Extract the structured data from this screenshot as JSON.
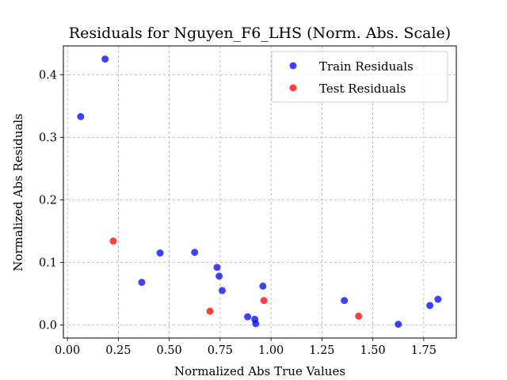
{
  "chart_data": {
    "type": "scatter",
    "title": "Residuals for Nguyen_F6_LHS (Norm. Abs. Scale)",
    "xlabel": "Normalized Abs True Values",
    "ylabel": "Normalized Abs Residuals",
    "xlim": [
      -0.02,
      1.91
    ],
    "ylim": [
      -0.021,
      0.446
    ],
    "xticks": [
      0.0,
      0.25,
      0.5,
      0.75,
      1.0,
      1.25,
      1.5,
      1.75
    ],
    "xtick_labels": [
      "0.00",
      "0.25",
      "0.50",
      "0.75",
      "1.00",
      "1.25",
      "1.50",
      "1.75"
    ],
    "yticks": [
      0.0,
      0.1,
      0.2,
      0.3,
      0.4
    ],
    "ytick_labels": [
      "0.0",
      "0.1",
      "0.2",
      "0.3",
      "0.4"
    ],
    "grid": true,
    "legend_position": "top-right",
    "series": [
      {
        "name": "Train Residuals",
        "color": "#0000ff",
        "points": [
          [
            0.065,
            0.333
          ],
          [
            0.185,
            0.425
          ],
          [
            0.365,
            0.068
          ],
          [
            0.455,
            0.115
          ],
          [
            0.625,
            0.116
          ],
          [
            0.735,
            0.092
          ],
          [
            0.745,
            0.078
          ],
          [
            0.76,
            0.055
          ],
          [
            0.885,
            0.013
          ],
          [
            0.92,
            0.009
          ],
          [
            0.925,
            0.002
          ],
          [
            0.96,
            0.062
          ],
          [
            1.36,
            0.039
          ],
          [
            1.625,
            0.001
          ],
          [
            1.78,
            0.031
          ],
          [
            1.82,
            0.041
          ]
        ]
      },
      {
        "name": "Test Residuals",
        "color": "#ff0000",
        "points": [
          [
            0.225,
            0.134
          ],
          [
            0.7,
            0.022
          ],
          [
            0.965,
            0.039
          ],
          [
            1.43,
            0.014
          ]
        ]
      }
    ]
  }
}
